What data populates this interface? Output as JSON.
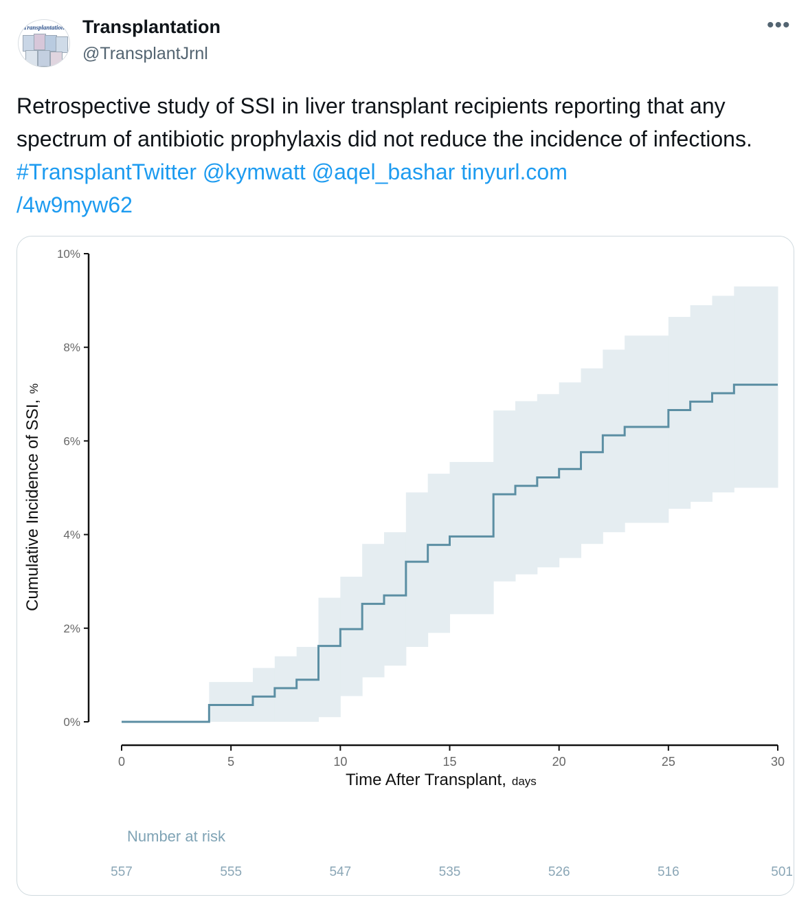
{
  "account": {
    "name": "Transplantation",
    "handle": "@TransplantJrnl",
    "avatar_text": "Transplantation"
  },
  "more_icon": "more-horizontal-icon",
  "tweet": {
    "text": "Retrospective study of SSI in liver transplant recipients reporting that any spectrum of antibiotic prophylaxis did not reduce the incidence of infections.",
    "hashtag": "#TransplantTwitter",
    "mention1": "@kymwatt",
    "mention2": "@aqel_bashar",
    "link_part1": "tinyurl.com",
    "link_part2": "/4w9myw62",
    "link_color": "#1d9bf0"
  },
  "chart_data": {
    "type": "line",
    "title": "",
    "xlabel": "Time After Transplant,",
    "xlabel_unit": "days",
    "ylabel": "Cumulative Incidence of SSI,",
    "ylabel_unit": "%",
    "xlim": [
      0,
      30
    ],
    "ylim": [
      0,
      10
    ],
    "x_ticks": [
      "0",
      "5",
      "10",
      "15",
      "20",
      "25",
      "30"
    ],
    "y_ticks": [
      "0%",
      "2%",
      "4%",
      "6%",
      "8%",
      "10%"
    ],
    "step": true,
    "line_color": "#5b8ea3",
    "band_color": "#e5edf1",
    "series": [
      {
        "x": [
          0,
          4,
          6,
          7,
          8,
          9,
          10,
          11,
          12,
          13,
          14,
          15,
          17,
          18,
          19,
          20,
          21,
          22,
          23,
          25,
          26,
          27,
          28,
          30
        ],
        "y": [
          0,
          0.36,
          0.54,
          0.72,
          0.9,
          1.62,
          1.98,
          2.52,
          2.7,
          3.42,
          3.78,
          3.96,
          4.86,
          5.04,
          5.22,
          5.4,
          5.76,
          6.12,
          6.3,
          6.66,
          6.84,
          7.02,
          7.2,
          7.2
        ],
        "lower": [
          0,
          0,
          0,
          0,
          0,
          0.1,
          0.55,
          0.95,
          1.2,
          1.6,
          1.9,
          2.3,
          3.0,
          3.15,
          3.3,
          3.5,
          3.8,
          4.05,
          4.25,
          4.55,
          4.7,
          4.9,
          5.0,
          5.0
        ],
        "upper": [
          0,
          0.85,
          1.15,
          1.4,
          1.6,
          2.65,
          3.1,
          3.8,
          4.05,
          4.9,
          5.3,
          5.55,
          6.65,
          6.85,
          7.0,
          7.25,
          7.55,
          7.95,
          8.25,
          8.65,
          8.9,
          9.1,
          9.3,
          9.3
        ]
      }
    ],
    "risk_table": {
      "title": "Number at risk",
      "x": [
        0,
        5,
        10,
        15,
        20,
        25,
        30
      ],
      "values": [
        "557",
        "555",
        "547",
        "535",
        "526",
        "516",
        "501"
      ]
    }
  }
}
